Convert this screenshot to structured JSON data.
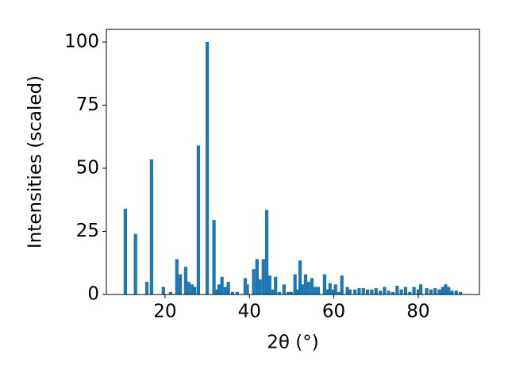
{
  "chart_data": {
    "type": "bar",
    "xlabel": "2θ (°)",
    "ylabel": "Intensities (scaled)",
    "color": "#1f77b4",
    "x": [
      10.6,
      13.0,
      15.7,
      16.8,
      19.6,
      21.3,
      22.8,
      23.6,
      24.9,
      25.6,
      26.4,
      27.0,
      27.9,
      30.0,
      31.6,
      32.2,
      32.8,
      33.5,
      34.3,
      35.0,
      36.0,
      37.1,
      39.0,
      39.5,
      41.0,
      41.8,
      42.5,
      43.3,
      44.1,
      44.8,
      45.6,
      46.2,
      47.1,
      48.2,
      49.2,
      49.9,
      50.8,
      51.4,
      52.0,
      52.7,
      53.3,
      54.0,
      54.8,
      55.6,
      56.3,
      57.8,
      58.5,
      59.1,
      59.9,
      60.4,
      61.2,
      61.9,
      63.2,
      63.8,
      65.0,
      66.0,
      67.0,
      68.0,
      69.0,
      70.0,
      71.0,
      72.0,
      73.0,
      74.0,
      75.0,
      76.0,
      77.0,
      78.0,
      79.0,
      80.0,
      80.6,
      82.0,
      83.0,
      84.0,
      85.0,
      85.8,
      86.5,
      87.2,
      88.0,
      89.0,
      90.0
    ],
    "values": [
      34,
      24,
      5,
      53.5,
      3,
      1,
      14,
      8,
      11,
      5,
      4,
      3,
      59,
      100,
      29.5,
      2,
      4,
      7,
      3,
      5,
      1,
      1,
      6.5,
      4,
      10,
      14,
      6,
      14,
      33.5,
      7.5,
      2,
      7,
      1,
      4,
      1,
      1,
      8,
      2,
      13.5,
      4,
      8,
      5,
      6.5,
      3,
      3,
      8,
      2,
      4.5,
      2,
      4,
      1,
      7.5,
      3,
      2,
      2,
      2.5,
      2.5,
      2,
      2,
      2.5,
      1.5,
      3,
      1.5,
      1,
      3.5,
      2,
      3,
      1,
      3,
      2,
      4,
      2.5,
      2,
      2.5,
      2,
      3,
      4,
      3,
      1.5,
      1.5,
      1
    ],
    "xlim": [
      6.1,
      94.5
    ],
    "ylim": [
      0,
      105
    ],
    "xticks": [
      20,
      40,
      60,
      80
    ],
    "yticks": [
      0,
      25,
      50,
      75,
      100
    ]
  }
}
